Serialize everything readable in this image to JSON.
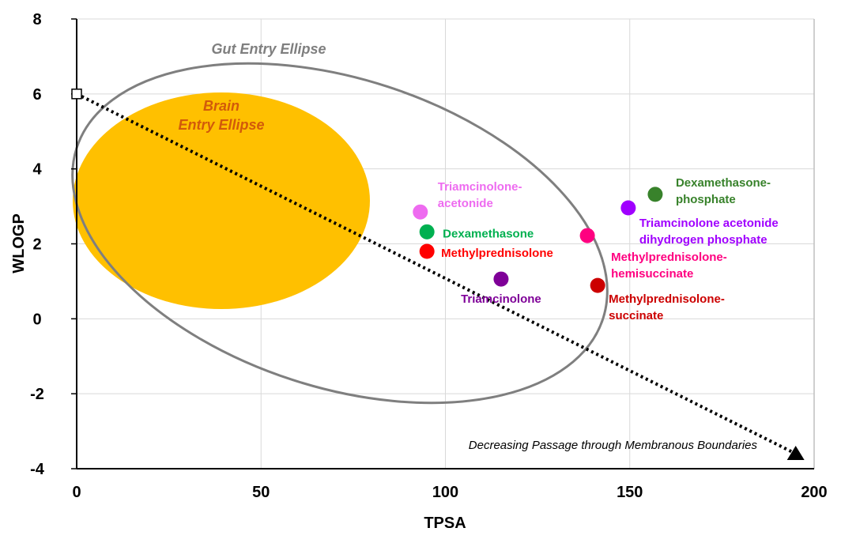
{
  "chart_data": {
    "type": "scatter",
    "xlabel": "TPSA",
    "ylabel": "WLOGP",
    "xlim": [
      0,
      200
    ],
    "ylim": [
      -4,
      8
    ],
    "xticks": [
      "0",
      "50",
      "100",
      "150",
      "200"
    ],
    "yticks": [
      "-4",
      "-2",
      "0",
      "2",
      "4",
      "6",
      "8"
    ],
    "grid": true,
    "regions": [
      {
        "label": [
          "Gut Entry Ellipse"
        ],
        "color": "#7f7f7f",
        "style": "outline"
      },
      {
        "label": [
          "Brain",
          "Entry Ellipse"
        ],
        "color": "#ffc000",
        "label_color": "#d25a0a",
        "style": "filled"
      }
    ],
    "trend_line": {
      "from": [
        0,
        6
      ],
      "to": [
        195,
        -3.6
      ],
      "label": "Decreasing Passage through Membranous Boundaries",
      "style": "dotted"
    },
    "points": [
      {
        "name": [
          "Triamcinolone-",
          "acetonide"
        ],
        "x": 93.2,
        "y": 2.85,
        "color": "#ee6bf0"
      },
      {
        "name": [
          "Dexamethasone"
        ],
        "x": 95.0,
        "y": 2.32,
        "color": "#00b050"
      },
      {
        "name": [
          "Methylprednisolone"
        ],
        "x": 95.0,
        "y": 1.8,
        "color": "#ff0000"
      },
      {
        "name": [
          "Triamcinolone"
        ],
        "x": 115.1,
        "y": 1.06,
        "color": "#7f0098"
      },
      {
        "name": [
          "Methylprednisolone-",
          "hemisuccinate"
        ],
        "x": 138.5,
        "y": 2.22,
        "color": "#ff0080"
      },
      {
        "name": [
          "Methylprednisolone-",
          "succinate"
        ],
        "x": 141.3,
        "y": 0.89,
        "color": "#cc0000"
      },
      {
        "name": [
          "Triamcinolone acetonide",
          "dihydrogen phosphate"
        ],
        "x": 149.6,
        "y": 2.96,
        "color": "#a000ff"
      },
      {
        "name": [
          "Dexamethasone-",
          "phosphate"
        ],
        "x": 156.9,
        "y": 3.32,
        "color": "#38822b"
      }
    ]
  }
}
